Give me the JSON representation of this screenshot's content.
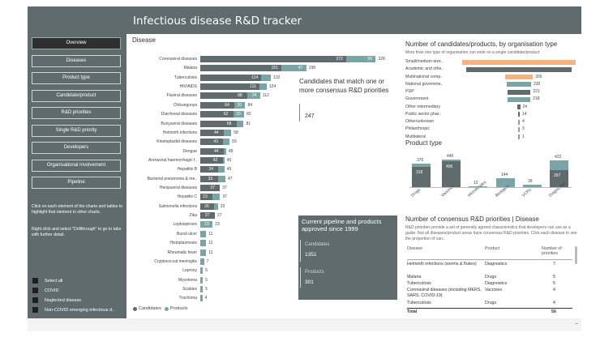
{
  "header": {
    "title": "Infectious disease R&D tracker"
  },
  "nav": [
    {
      "label": "Overview",
      "active": true
    },
    {
      "label": "Diseases"
    },
    {
      "label": "Product type"
    },
    {
      "label": "Candidate/product"
    },
    {
      "label": "R&D priorities"
    },
    {
      "label": "Single R&D priority"
    },
    {
      "label": "Developers"
    },
    {
      "label": "Organisational involvement"
    },
    {
      "label": "Pipeline"
    }
  ],
  "help": {
    "line1": "Click on each element of the charts and tables to highlight that element in other charts.",
    "line2": "Right click and select \"Drillthrough\" to go to tabs with further detail."
  },
  "filters": [
    "Select all",
    "COVID",
    "Neglected disease",
    "Non-COVID emerging infectious d.."
  ],
  "disease": {
    "title": "Disease",
    "legend_candidates": "Candidates",
    "legend_products": "Products",
    "colors": {
      "candidates": "#5f6b6d",
      "products": "#7aa4a6"
    },
    "rows": [
      {
        "name": "Coronaviral diseases",
        "cand": 272,
        "prod": 56,
        "total": 328
      },
      {
        "name": "Malaria",
        "cand": 151,
        "prod": 47,
        "total": 198
      },
      {
        "name": "Tuberculosis",
        "cand": 114,
        "prod": 18,
        "total": 132
      },
      {
        "name": "HIV/AIDS",
        "cand": 111,
        "prod": 13,
        "total": 124
      },
      {
        "name": "Flaviral diseases",
        "cand": 88,
        "prod": 24,
        "total": 112
      },
      {
        "name": "Chikungunya",
        "cand": 64,
        "prod": 20,
        "total": 84
      },
      {
        "name": "Diarrhoeal diseases",
        "cand": 62,
        "prod": 20,
        "total": 82
      },
      {
        "name": "Bunyaviral diseases",
        "cand": 68,
        "prod": 13,
        "total": 81
      },
      {
        "name": "Helminth infections",
        "cand": 44,
        "prod": 14,
        "total": 58
      },
      {
        "name": "Kinetoplastid diseases",
        "cand": 43,
        "prod": 12,
        "total": 55
      },
      {
        "name": "Dengue",
        "cand": 44,
        "prod": 4,
        "total": 48
      },
      {
        "name": "Arenaviral haemorrhagic f..",
        "cand": 42,
        "prod": 3,
        "total": 45
      },
      {
        "name": "Hepatitis B",
        "cand": 34,
        "prod": 11,
        "total": 45
      },
      {
        "name": "Bacterial pneumonia & me..",
        "cand": 33,
        "prod": 14,
        "total": 47
      },
      {
        "name": "Henipaviral diseases",
        "cand": 37,
        "prod": 0,
        "total": 37
      },
      {
        "name": "Hepatitis C",
        "cand": 23,
        "prod": 14,
        "total": 37
      },
      {
        "name": "Salmonella infections",
        "cand": 26,
        "prod": 7,
        "total": 33
      },
      {
        "name": "Zika",
        "cand": 27,
        "prod": 0,
        "total": 27
      },
      {
        "name": "Leptospirosis",
        "cand": 0,
        "prod": 23,
        "total": 23
      },
      {
        "name": "Buruli ulcer",
        "cand": 0,
        "prod": 11,
        "total": 11
      },
      {
        "name": "Histoplasmosis",
        "cand": 0,
        "prod": 11,
        "total": 11
      },
      {
        "name": "Rheumatic fever",
        "cand": 0,
        "prod": 11,
        "total": 11
      },
      {
        "name": "Cryptococcal meningitis",
        "cand": 0,
        "prod": 7,
        "total": 7
      },
      {
        "name": "Leprosy",
        "cand": 0,
        "prod": 5,
        "total": 5
      },
      {
        "name": "Mycetoma",
        "cand": 0,
        "prod": 5,
        "total": 5
      },
      {
        "name": "Scabies",
        "cand": 0,
        "prod": 5,
        "total": 5
      },
      {
        "name": "Trachoma",
        "cand": 0,
        "prod": 4,
        "total": 4
      }
    ]
  },
  "match": {
    "title": "Candidates that match one or more consensus R&D priorities",
    "value": "247"
  },
  "pipeline_card": {
    "title": "Current pipeline and products approved since 1999",
    "candidates_label": "Candidates",
    "candidates_value": "1351",
    "products_label": "Products",
    "products_value": "301"
  },
  "org": {
    "title": "Number of candidates/products, by organisation type",
    "subtitle": "More than one type of organisation can work on a single candidate/product",
    "rows": [
      {
        "name": "Small/medium-size..",
        "value": null,
        "color": "#f4b183"
      },
      {
        "name": "Academic and othe..",
        "value": null,
        "color": "#5f6b6d"
      },
      {
        "name": "Multinational comp..",
        "value": 265,
        "color": "#f4b183"
      },
      {
        "name": "National governme..",
        "value": 230,
        "color": "#7aa4a6"
      },
      {
        "name": "PDP",
        "value": 221,
        "color": "#5f6b6d"
      },
      {
        "name": "Government",
        "value": 218,
        "color": "#7aa4a6"
      },
      {
        "name": "Other intermediary",
        "value": 24,
        "color": "#5f6b6d"
      },
      {
        "name": "Public sector phar..",
        "value": 14,
        "color": "#5f6b6d"
      },
      {
        "name": "Other/unknown",
        "value": 4,
        "color": "#999999"
      },
      {
        "name": "Philanthropic",
        "value": 3,
        "color": "#999999"
      },
      {
        "name": "Multilateral",
        "value": 1,
        "color": "#999999"
      }
    ]
  },
  "product_type": {
    "title": "Product type",
    "colors": {
      "candidates": "#5f6b6d",
      "products": "#7aa4a6"
    },
    "rows": [
      {
        "name": "Drugs",
        "cand": 318,
        "prod": 57,
        "total": 375
      },
      {
        "name": "Vaccines",
        "cand": 406,
        "prod": 34,
        "total": 440
      },
      {
        "name": "Microbicides",
        "cand": 0,
        "prod": 12,
        "total": 12
      },
      {
        "name": "Biologics",
        "cand": 0,
        "prod": 144,
        "total": 144
      },
      {
        "name": "VCPs",
        "cand": 0,
        "prod": 39,
        "total": 39
      },
      {
        "name": "Diagnostics",
        "cand": 267,
        "prod": 155,
        "total": 422
      }
    ]
  },
  "priorities": {
    "title": "Number of consensus R&D priorities | Disease",
    "desc": "R&D priorities provide a set of generally agreed characteristics that developers can use as a guide. Not all diseases/product areas have consensus R&D priorities. Click each disease to see the proportion of can..",
    "headers": {
      "disease": "Disease",
      "product": "Product",
      "count": "Number of priorities"
    },
    "rows": [
      {
        "disease": "Helminth infections (worms & flukes)",
        "product": "Diagnostics",
        "count": "7"
      },
      {
        "disease": "Malaria",
        "product": "Drugs",
        "count": "5"
      },
      {
        "disease": "Tuberculosis",
        "product": "Diagnostics",
        "count": "5"
      },
      {
        "disease": "Coronaviral diseases (including MERS, SARS, COVID-19)",
        "product": "Vaccines",
        "count": "4"
      },
      {
        "disease": "Tuberculosis",
        "product": "Drugs",
        "count": "4"
      }
    ],
    "total_label": "Total",
    "total_value": "56"
  }
}
